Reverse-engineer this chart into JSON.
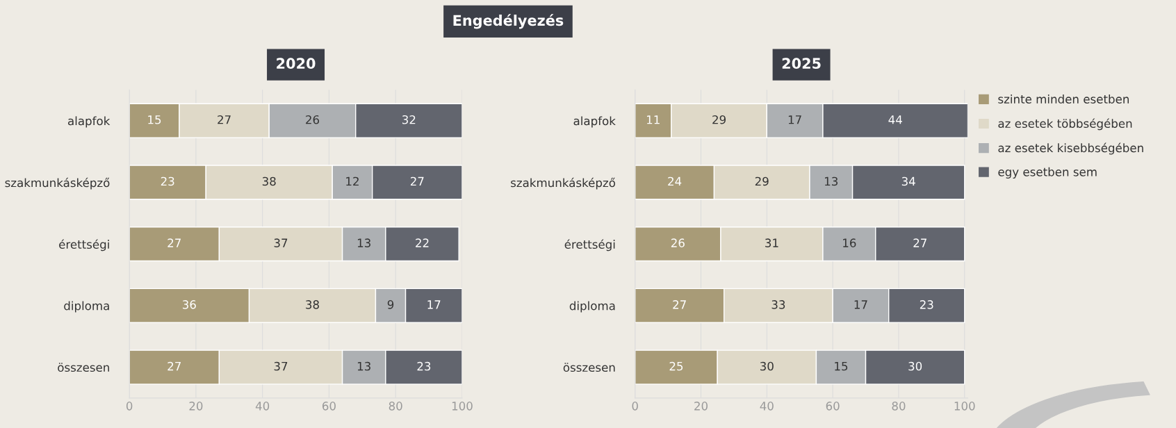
{
  "chart_data": [
    {
      "type": "bar",
      "orientation": "horizontal",
      "stacked": true,
      "title": "2020",
      "annotations": [
        "Engedélyezés"
      ],
      "categories": [
        "alapfok",
        "szakmunkásképző",
        "érettségi",
        "diploma",
        "összesen"
      ],
      "series": [
        {
          "color": "#a89b77",
          "values": [
            15,
            23,
            27,
            36,
            27
          ]
        },
        {
          "color": "#dfd9c8",
          "values": [
            27,
            38,
            37,
            38,
            37
          ]
        },
        {
          "color": "#adb0b3",
          "values": [
            26,
            12,
            13,
            9,
            13
          ]
        },
        {
          "color": "#62656e",
          "values": [
            32,
            27,
            22,
            17,
            23
          ]
        }
      ],
      "xlim": [
        0,
        100
      ],
      "xticks": [
        0,
        20,
        40,
        60,
        80,
        100
      ],
      "grid": "x",
      "data_labels": true
    },
    {
      "type": "bar",
      "orientation": "horizontal",
      "stacked": true,
      "title": "2025",
      "categories": [
        "alapfok",
        "szakmunkásképző",
        "érettségi",
        "diploma",
        "összesen"
      ],
      "series": [
        {
          "name": "szinte minden esetben",
          "color": "#a89b77",
          "values": [
            11,
            24,
            26,
            27,
            25
          ]
        },
        {
          "name": "az esetek többségében",
          "color": "#dfd9c8",
          "values": [
            29,
            29,
            31,
            33,
            30
          ]
        },
        {
          "name": "az esetek kisebbségében",
          "color": "#adb0b3",
          "values": [
            17,
            13,
            16,
            17,
            15
          ]
        },
        {
          "name": "egy esetben sem",
          "color": "#62656e",
          "values": [
            44,
            34,
            27,
            23,
            30
          ]
        }
      ],
      "xlim": [
        0,
        101
      ],
      "xticks": [
        0,
        20,
        40,
        60,
        80,
        100
      ],
      "grid": "x",
      "data_labels": true,
      "legend": "right"
    }
  ]
}
